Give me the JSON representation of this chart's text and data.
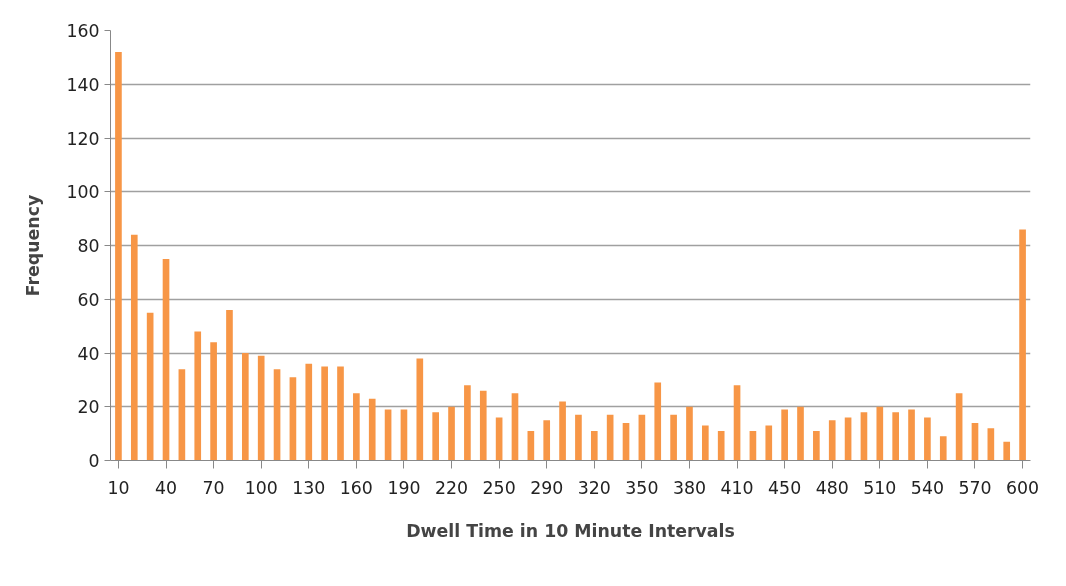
{
  "chart_data": {
    "type": "bar",
    "xlabel": "Dwell Time in 10 Minute Intervals",
    "ylabel": "Frequency",
    "categories": [
      "10",
      null,
      null,
      "40",
      null,
      null,
      "70",
      null,
      null,
      "100",
      null,
      null,
      "130",
      null,
      null,
      "160",
      null,
      null,
      "190",
      null,
      null,
      "220",
      null,
      null,
      "250",
      null,
      null,
      "290",
      null,
      null,
      "320",
      null,
      null,
      "350",
      null,
      null,
      "380",
      null,
      null,
      "410",
      null,
      null,
      "450",
      null,
      null,
      "480",
      null,
      null,
      "510",
      null,
      null,
      "540",
      null,
      null,
      "570",
      null,
      null,
      "600"
    ],
    "values": [
      152,
      84,
      55,
      75,
      34,
      48,
      44,
      56,
      40,
      39,
      34,
      31,
      36,
      35,
      35,
      25,
      23,
      19,
      19,
      38,
      18,
      20,
      28,
      26,
      16,
      25,
      11,
      15,
      22,
      17,
      11,
      17,
      14,
      17,
      29,
      17,
      20,
      13,
      11,
      28,
      11,
      13,
      19,
      20,
      11,
      15,
      16,
      18,
      20,
      18,
      19,
      16,
      9,
      25,
      14,
      12,
      7,
      86
    ],
    "color": "#f79646",
    "ylim": [
      0,
      160
    ],
    "yticks": [
      0,
      20,
      40,
      60,
      80,
      100,
      120,
      140,
      160
    ],
    "grid": "y"
  }
}
